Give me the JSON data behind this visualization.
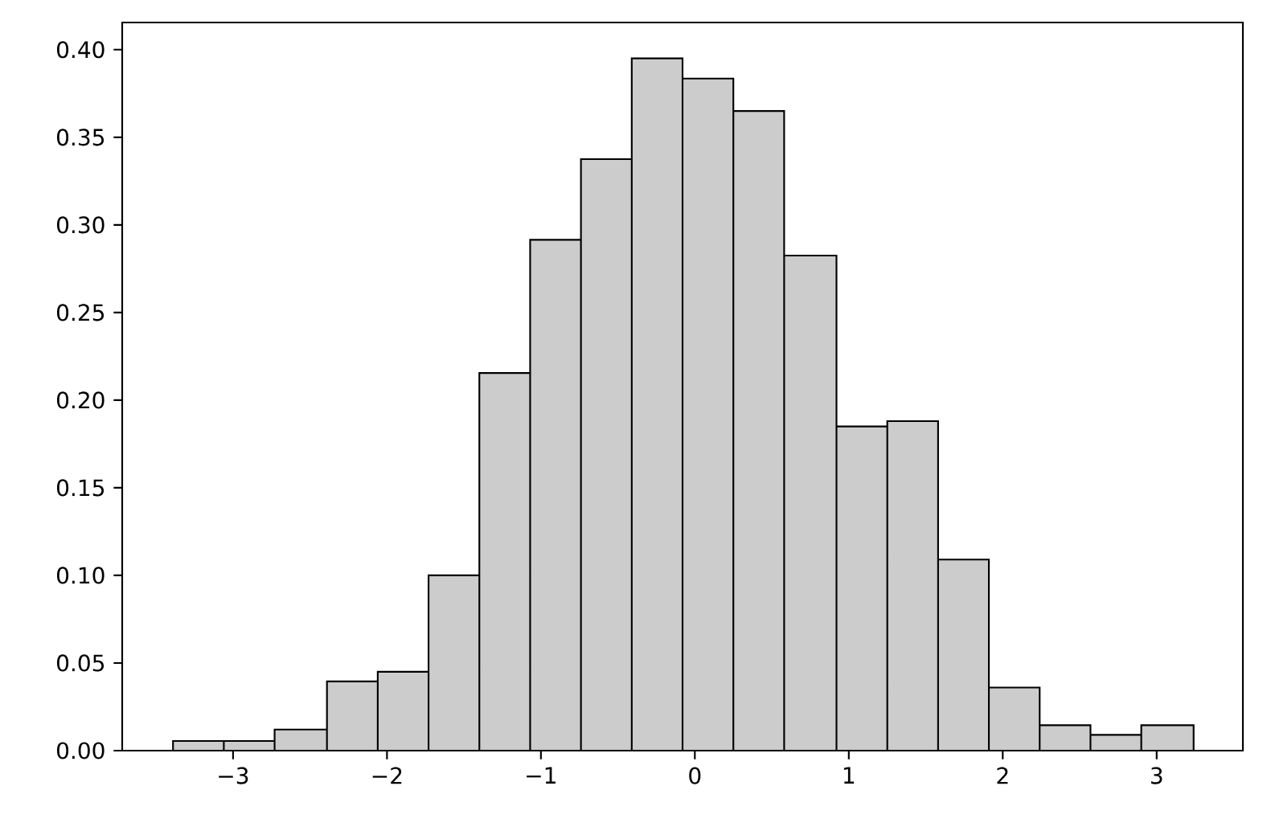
{
  "chart_data": {
    "type": "histogram",
    "bins": [
      -3.39,
      -3.06,
      -2.73,
      -2.39,
      -2.06,
      -1.73,
      -1.4,
      -1.07,
      -0.74,
      -0.41,
      -0.08,
      0.25,
      0.58,
      0.92,
      1.25,
      1.58,
      1.91,
      2.24,
      2.57,
      2.9,
      3.24
    ],
    "values": [
      0.0055,
      0.0055,
      0.012,
      0.0395,
      0.045,
      0.1,
      0.2155,
      0.2915,
      0.3375,
      0.395,
      0.3835,
      0.365,
      0.2825,
      0.185,
      0.188,
      0.109,
      0.036,
      0.0145,
      0.009,
      0.0145
    ],
    "color": "#cccccc",
    "xlim": [
      -3.72,
      3.56
    ],
    "ylim": [
      0,
      0.4155
    ],
    "xticks": [
      {
        "value": -3,
        "label": "−3"
      },
      {
        "value": -2,
        "label": "−2"
      },
      {
        "value": -1,
        "label": "−1"
      },
      0,
      1,
      2,
      3
    ],
    "yticks": [
      {
        "value": 0,
        "label": "0.00"
      },
      0.05,
      {
        "value": 0.1,
        "label": "0.10"
      },
      0.15,
      {
        "value": 0.2,
        "label": "0.20"
      },
      0.25,
      {
        "value": 0.3,
        "label": "0.30"
      },
      0.35,
      {
        "value": 0.4,
        "label": "0.40"
      }
    ]
  }
}
